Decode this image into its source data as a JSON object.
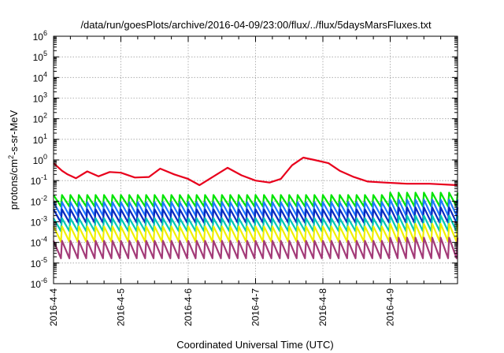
{
  "chart_data": {
    "type": "line",
    "title": "/data/run/goesPlots/archive/2016-04-09/23:00/flux/../flux/5daysMarsFluxes.txt",
    "xlabel": "Coordinated Universal Time (UTC)",
    "ylabel": {
      "main": "protons/cm",
      "sup": "2",
      "rest": "-s-sr-MeV"
    },
    "xlim": [
      "2016-04-04 00:00",
      "2016-04-10 00:00"
    ],
    "x_ticks": [
      "2016-4-4",
      "2016-4-5",
      "2016-4-6",
      "2016-4-7",
      "2016-4-8",
      "2016-4-9"
    ],
    "y_scale": "log",
    "ylim": [
      1e-06,
      1000000.0
    ],
    "y_ticks": [
      {
        "base": "10",
        "exp": "-6",
        "value": 1e-06
      },
      {
        "base": "10",
        "exp": "-5",
        "value": 1e-05
      },
      {
        "base": "10",
        "exp": "-4",
        "value": 0.0001
      },
      {
        "base": "10",
        "exp": "-3",
        "value": 0.001
      },
      {
        "base": "10",
        "exp": "-2",
        "value": 0.01
      },
      {
        "base": "10",
        "exp": "-1",
        "value": 0.1
      },
      {
        "base": "10",
        "exp": "0",
        "value": 1
      },
      {
        "base": "10",
        "exp": "1",
        "value": 10
      },
      {
        "base": "10",
        "exp": "2",
        "value": 100
      },
      {
        "base": "10",
        "exp": "3",
        "value": 1000
      },
      {
        "base": "10",
        "exp": "4",
        "value": 10000
      },
      {
        "base": "10",
        "exp": "5",
        "value": 100000
      },
      {
        "base": "10",
        "exp": "6",
        "value": 1000000
      }
    ],
    "grid": true,
    "sawtooth_period_hours": 3,
    "series": [
      {
        "color": "#e8001c",
        "pattern": "trend",
        "points": [
          [
            "2016-04-04 00:00",
            0.7
          ],
          [
            "2016-04-04 03:00",
            0.3
          ],
          [
            "2016-04-04 05:00",
            0.2
          ],
          [
            "2016-04-04 08:00",
            0.13
          ],
          [
            "2016-04-04 12:00",
            0.28
          ],
          [
            "2016-04-04 16:00",
            0.16
          ],
          [
            "2016-04-04 20:00",
            0.26
          ],
          [
            "2016-04-05 00:00",
            0.24
          ],
          [
            "2016-04-05 05:00",
            0.14
          ],
          [
            "2016-04-05 10:00",
            0.15
          ],
          [
            "2016-04-05 14:00",
            0.38
          ],
          [
            "2016-04-05 19:00",
            0.2
          ],
          [
            "2016-04-06 00:00",
            0.12
          ],
          [
            "2016-04-06 04:00",
            0.06
          ],
          [
            "2016-04-06 08:00",
            0.13
          ],
          [
            "2016-04-06 14:00",
            0.42
          ],
          [
            "2016-04-06 19:00",
            0.18
          ],
          [
            "2016-04-07 00:00",
            0.1
          ],
          [
            "2016-04-07 05:00",
            0.08
          ],
          [
            "2016-04-07 09:00",
            0.12
          ],
          [
            "2016-04-07 13:00",
            0.55
          ],
          [
            "2016-04-07 17:00",
            1.3
          ],
          [
            "2016-04-07 21:00",
            1.0
          ],
          [
            "2016-04-08 02:00",
            0.7
          ],
          [
            "2016-04-08 06:00",
            0.3
          ],
          [
            "2016-04-08 11:00",
            0.15
          ],
          [
            "2016-04-08 16:00",
            0.09
          ],
          [
            "2016-04-08 22:00",
            0.08
          ],
          [
            "2016-04-09 06:00",
            0.07
          ],
          [
            "2016-04-09 14:00",
            0.07
          ],
          [
            "2016-04-10 00:00",
            0.06
          ]
        ]
      },
      {
        "color": "#00e400",
        "pattern": "sawtooth",
        "peak": 0.02,
        "trough": 0.0055,
        "peak_late": 0.026
      },
      {
        "color": "#1e78ff",
        "pattern": "sawtooth",
        "peak": 0.009,
        "trough": 0.002,
        "peak_late": 0.012
      },
      {
        "color": "#0a2ac0",
        "pattern": "sawtooth",
        "peak": 0.004,
        "trough": 0.0009,
        "peak_late": 0.005
      },
      {
        "color": "#00c8b4",
        "pattern": "sawtooth",
        "peak": 0.0015,
        "trough": 0.00035,
        "peak_late": 0.002
      },
      {
        "color": "#f0f000",
        "pattern": "sawtooth",
        "peak": 0.0006,
        "trough": 0.00011,
        "peak_late": 0.0008
      },
      {
        "color": "#a33b78",
        "pattern": "sawtooth",
        "peak": 0.00012,
        "trough": 1.7e-05,
        "peak_late": 0.00017
      }
    ]
  }
}
